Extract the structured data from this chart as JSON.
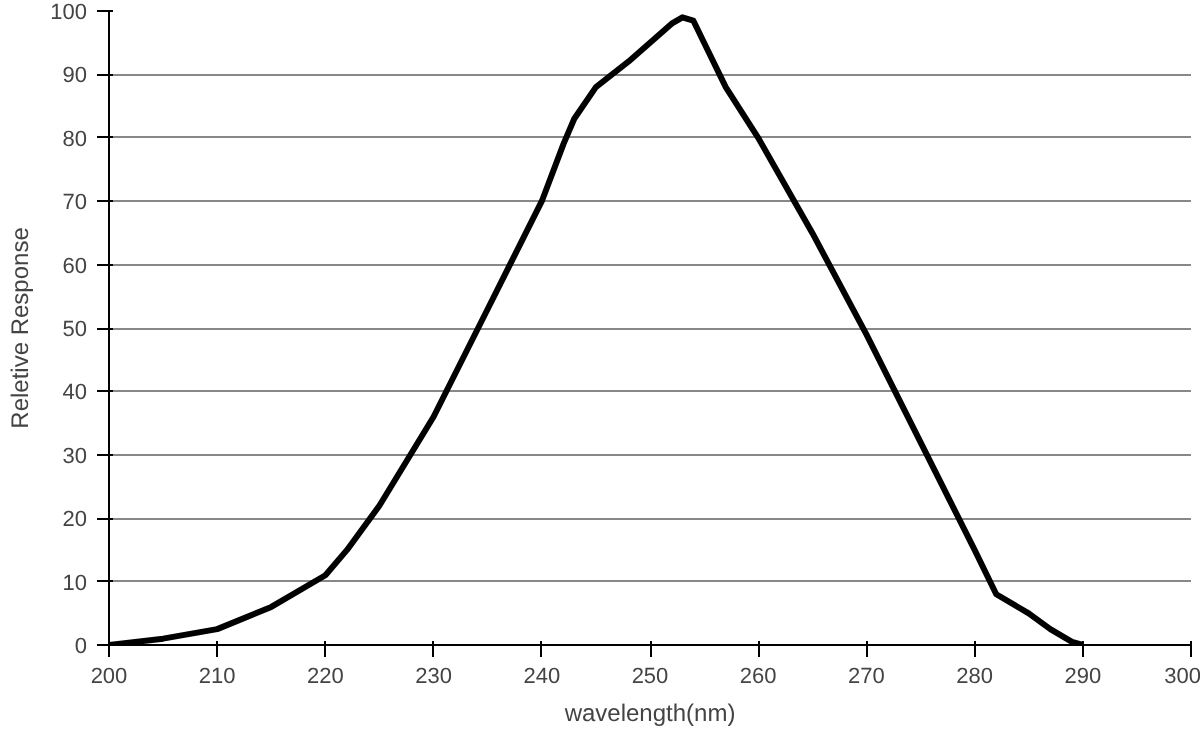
{
  "chart_data": {
    "type": "line",
    "xlabel": "wavelength(nm)",
    "ylabel": "Reletive Response",
    "series": [
      {
        "color": "#000000",
        "x": [
          200,
          205,
          210,
          215,
          220,
          222,
          225,
          230,
          235,
          240,
          242,
          243,
          245,
          248,
          250,
          252,
          253,
          254,
          255,
          257,
          260,
          265,
          270,
          275,
          280,
          282,
          285,
          287,
          289,
          290
        ],
        "values": [
          0,
          1,
          2.5,
          6,
          11,
          15,
          22,
          36,
          53,
          70,
          79,
          83,
          88,
          92,
          95,
          98,
          99,
          98.5,
          95,
          88,
          80,
          65,
          49,
          32,
          15,
          8,
          5,
          2.5,
          0.5,
          0
        ]
      }
    ],
    "xlim": [
      200,
      300
    ],
    "ylim": [
      0,
      100
    ],
    "xticks": [
      200,
      210,
      220,
      230,
      240,
      250,
      260,
      270,
      280,
      290,
      300
    ],
    "yticks": [
      0,
      10,
      20,
      30,
      40,
      50,
      60,
      70,
      80,
      90,
      100
    ],
    "grid": "y",
    "line_style": "solid",
    "marker": "none"
  }
}
